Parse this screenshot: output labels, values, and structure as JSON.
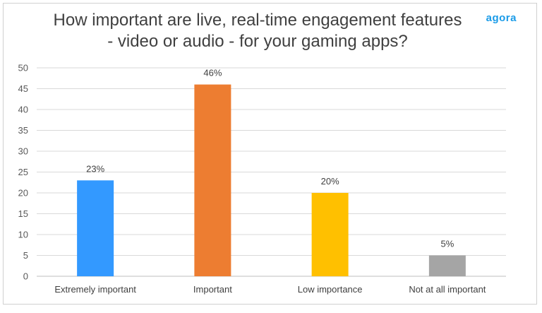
{
  "title_line1": "How important are live, real-time engagement features",
  "title_line2": "- video or audio - for your gaming apps?",
  "brand_logo": "agora",
  "colors": {
    "blue": "#3399ff",
    "orange": "#ed7d31",
    "yellow": "#ffc000",
    "gray": "#a5a5a5",
    "grid": "#d9d9d9"
  },
  "chart_data": {
    "type": "bar",
    "title": "How important are live, real-time engagement features - video or audio - for your gaming apps?",
    "categories": [
      "Extremely important",
      "Important",
      "Low importance",
      "Not at all important"
    ],
    "values": [
      23,
      46,
      20,
      5
    ],
    "data_labels": [
      "23%",
      "46%",
      "20%",
      "5%"
    ],
    "bar_colors": [
      "#3399ff",
      "#ed7d31",
      "#ffc000",
      "#a5a5a5"
    ],
    "ylim": [
      0,
      50
    ],
    "yticks": [
      0,
      5,
      10,
      15,
      20,
      25,
      30,
      35,
      40,
      45,
      50
    ],
    "grid": true,
    "legend": "none",
    "xlabel": "",
    "ylabel": ""
  }
}
